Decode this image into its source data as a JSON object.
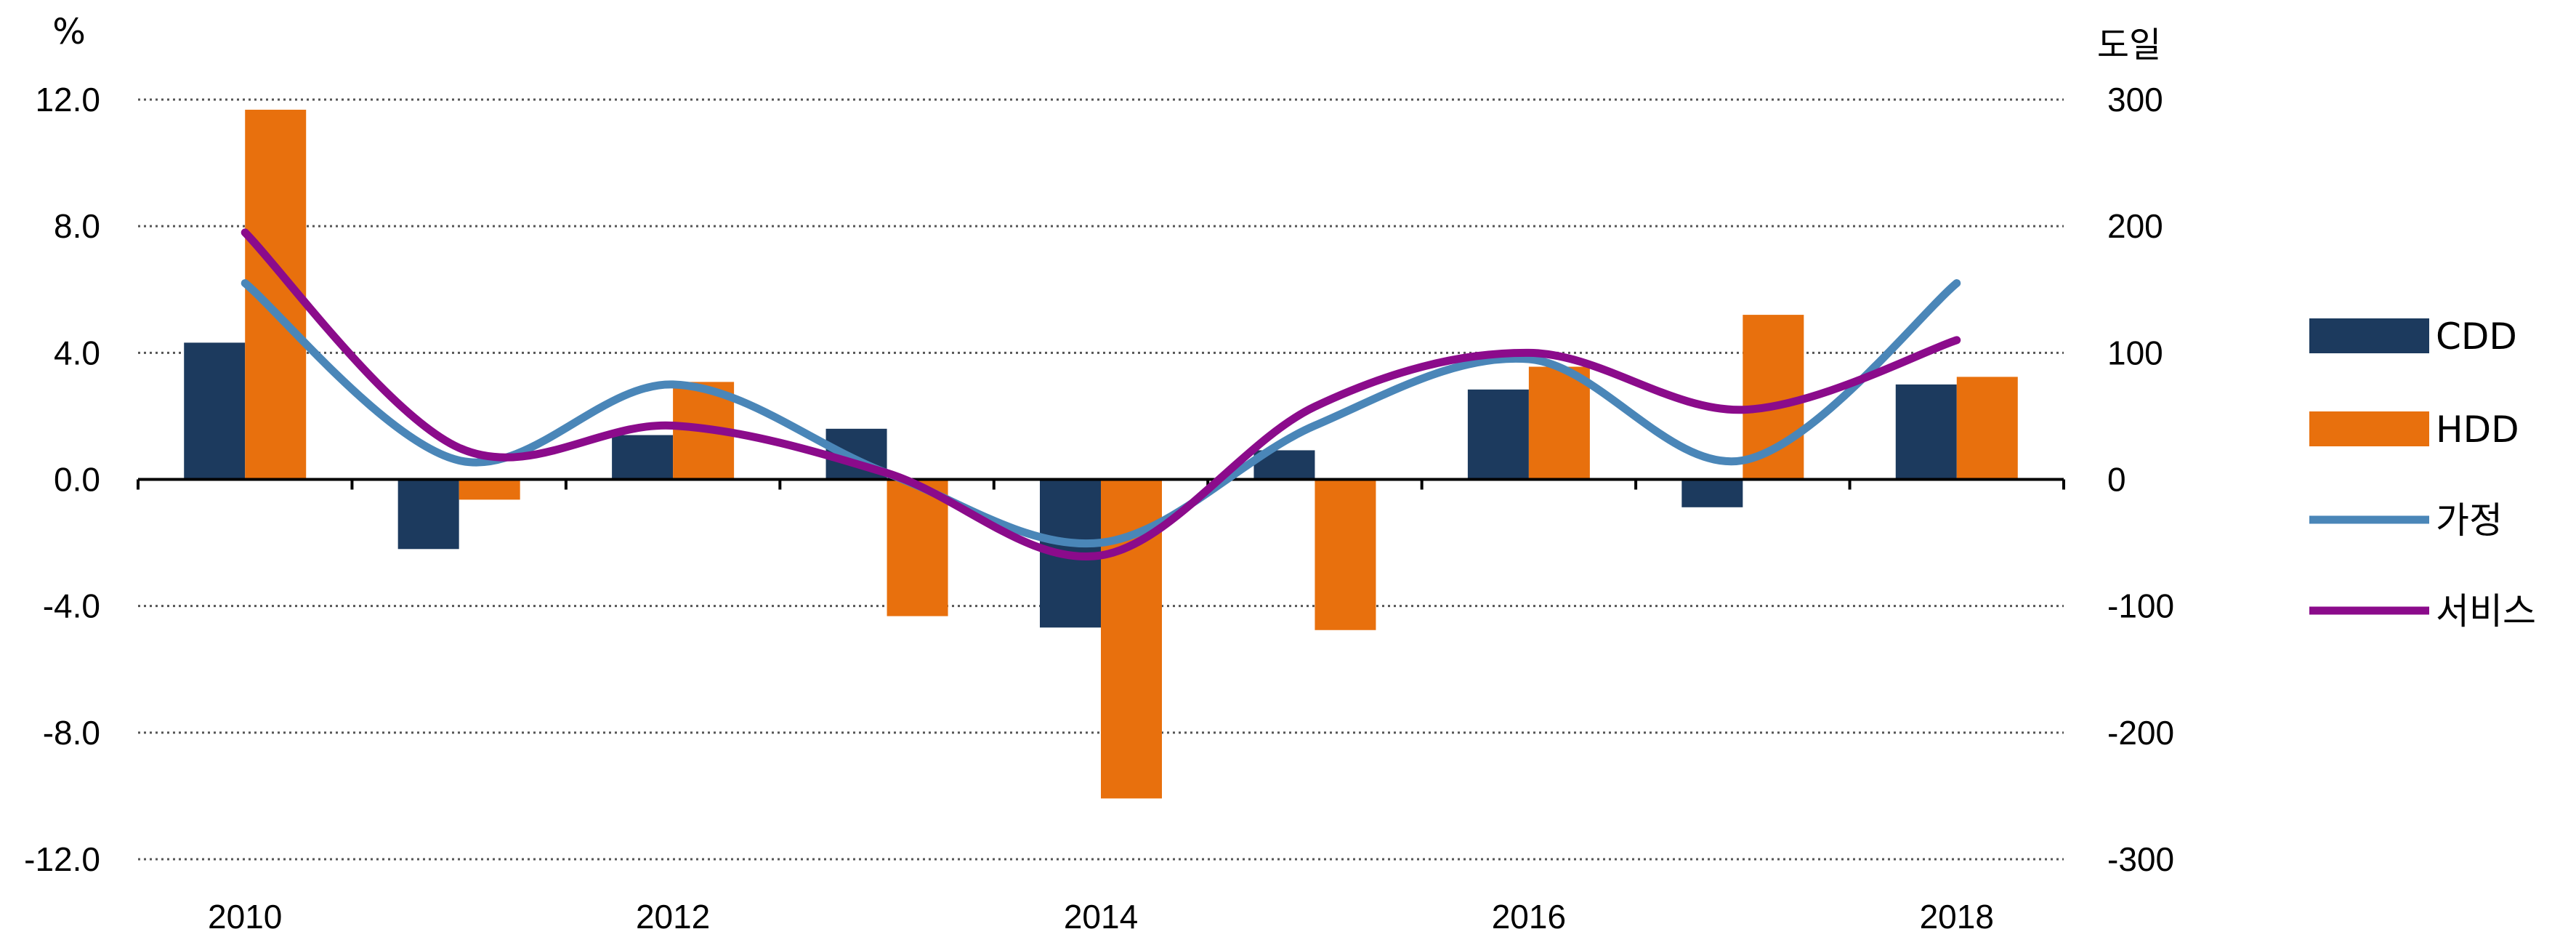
{
  "chart_data": {
    "type": "bar",
    "title": "",
    "left_unit": "%",
    "right_unit": "도일",
    "x_ticks": [
      "2010",
      "2012",
      "2014",
      "2016",
      "2018"
    ],
    "categories": [
      "2010",
      "2011",
      "2012",
      "2013",
      "2014",
      "2015",
      "2016",
      "2017",
      "2018"
    ],
    "ylim_left": [
      -12,
      12
    ],
    "ylim_right": [
      -300,
      300
    ],
    "yticks_left": [
      "12.0",
      "8.0",
      "4.0",
      "0.0",
      "-4.0",
      "-8.0",
      "-12.0"
    ],
    "yticks_right": [
      "300",
      "200",
      "100",
      "0",
      "-100",
      "-200",
      "-300"
    ],
    "grid": "dotted horizontal",
    "legend_position": "right",
    "series": [
      {
        "name": "CDD",
        "type": "bar",
        "axis": "right",
        "color": "#1c3a5e",
        "values": [
          108,
          -55,
          35,
          40,
          -117,
          23,
          71,
          -22,
          75
        ]
      },
      {
        "name": "HDD",
        "type": "bar",
        "axis": "right",
        "color": "#e8700d",
        "values": [
          292,
          -16,
          77,
          -108,
          -252,
          -119,
          89,
          130,
          81
        ]
      },
      {
        "name": "가정",
        "type": "line",
        "axis": "left",
        "color": "#4a86b8",
        "values": [
          6.2,
          0.6,
          3.0,
          0.2,
          -2.0,
          1.7,
          3.8,
          0.6,
          6.2
        ]
      },
      {
        "name": "서비스",
        "type": "line",
        "axis": "left",
        "color": "#8b0b8b",
        "values": [
          7.8,
          1.0,
          1.7,
          0.2,
          -2.4,
          2.3,
          4.0,
          2.2,
          4.4
        ]
      }
    ]
  }
}
